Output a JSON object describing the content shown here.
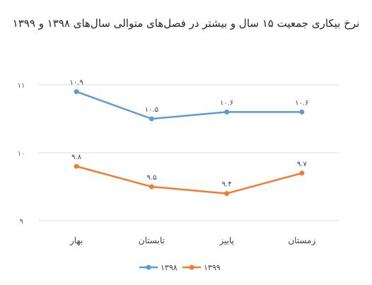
{
  "chart_data": {
    "type": "line",
    "title": "نرخ بیکاری جمعیت ۱۵ سال و بیشتر در فصل‌های متوالی سال‌های ۱۳۹۸ و ۱۳۹۹",
    "categories": [
      "بهار",
      "تابستان",
      "پاییز",
      "زمستان"
    ],
    "y_ticks": [
      {
        "value": 11,
        "label": "۱۱"
      },
      {
        "value": 10,
        "label": "۱۰"
      },
      {
        "value": 9,
        "label": "۹"
      }
    ],
    "ylim": [
      9,
      11
    ],
    "grid": true,
    "legend_position": "bottom",
    "series": [
      {
        "name": "۱۳۹۸",
        "color": "#5B9BD5",
        "values": [
          10.9,
          10.5,
          10.6,
          10.6
        ],
        "labels": [
          "۱۰.۹",
          "۱۰.۵",
          "۱۰.۶",
          "۱۰.۶"
        ]
      },
      {
        "name": "۱۳۹۹",
        "color": "#ED7D31",
        "values": [
          9.8,
          9.5,
          9.4,
          9.7
        ],
        "labels": [
          "۹.۸",
          "۹.۵",
          "۹.۴",
          "۹.۷"
        ]
      }
    ]
  }
}
